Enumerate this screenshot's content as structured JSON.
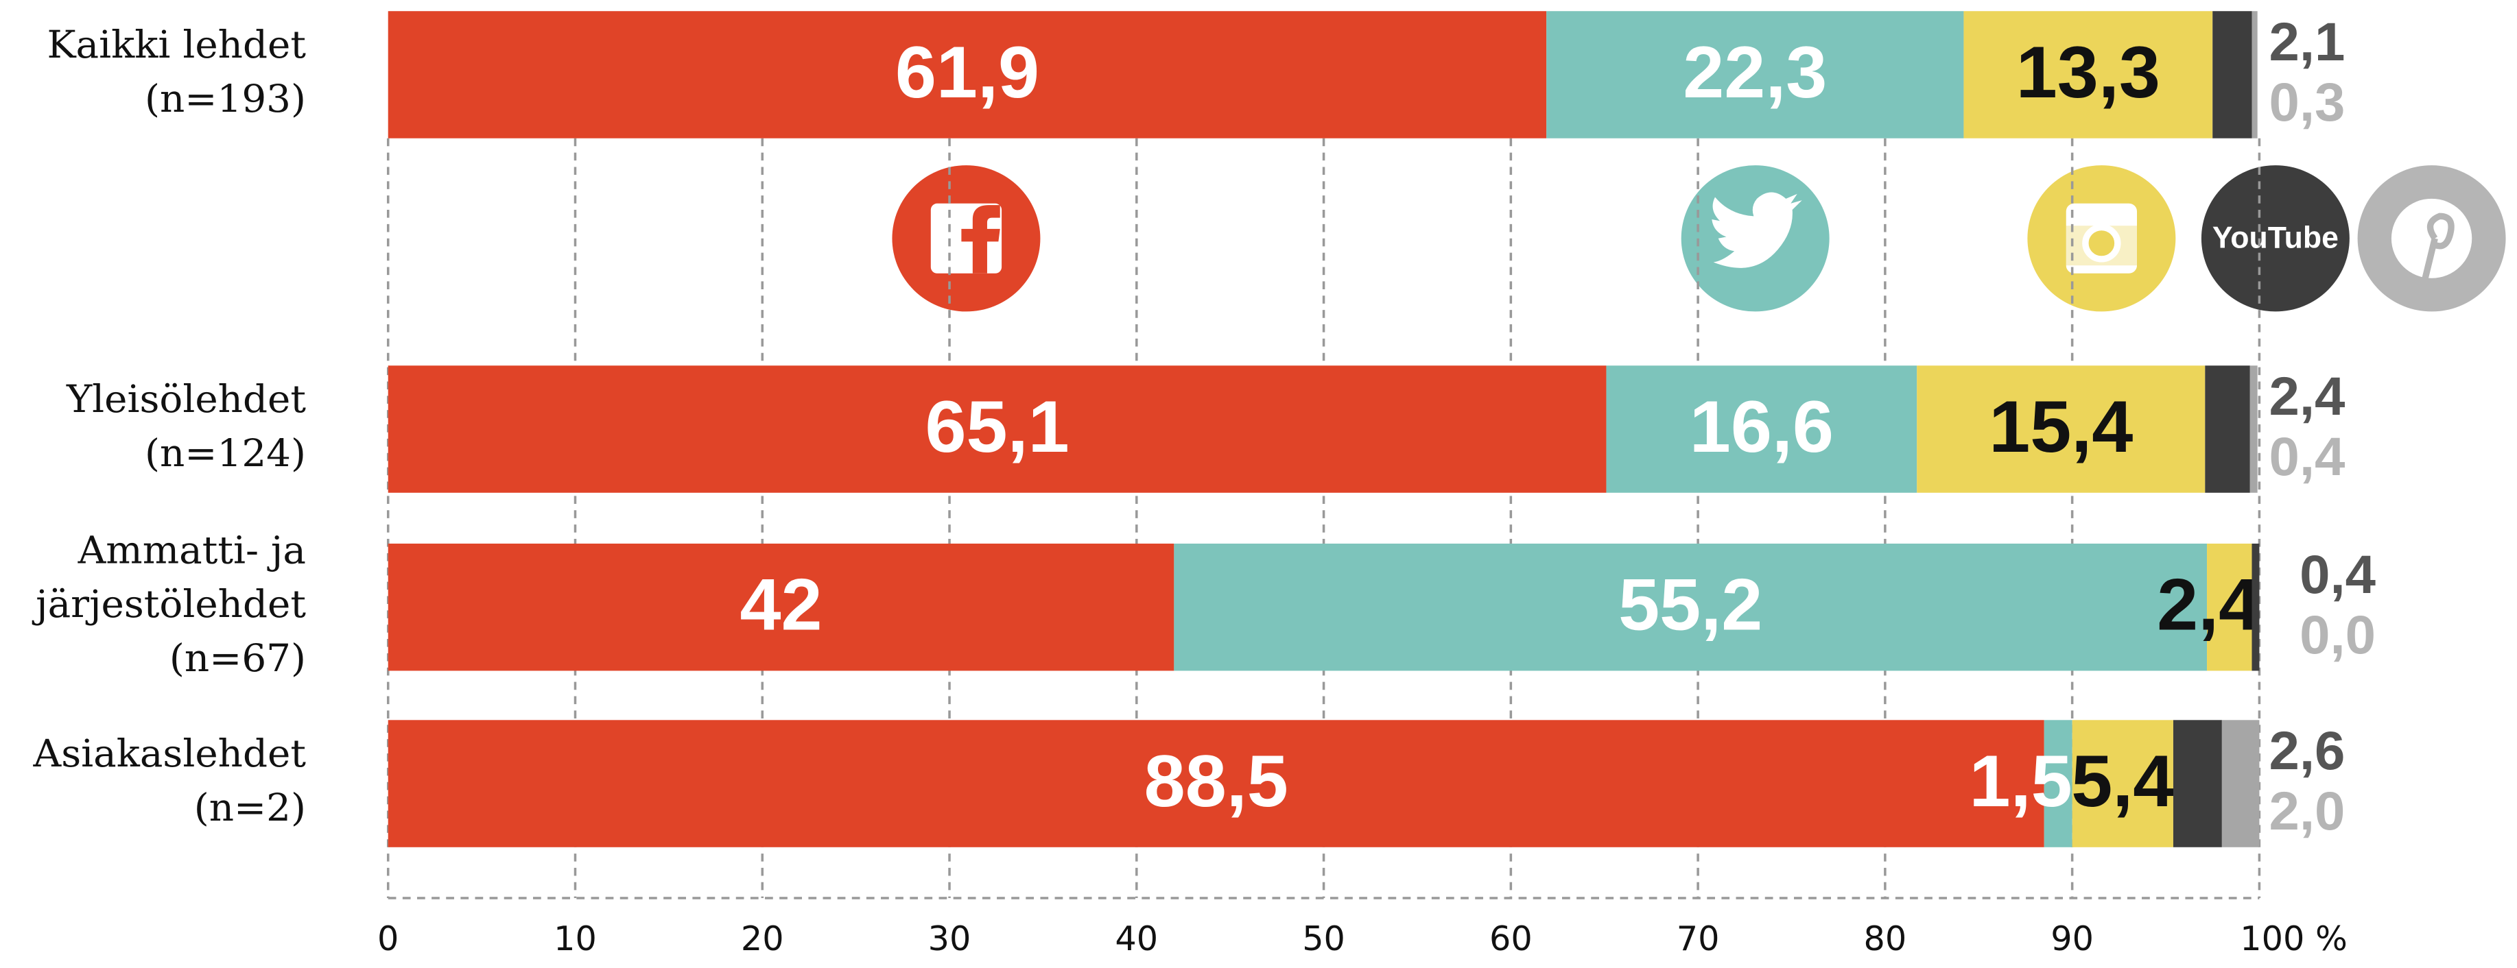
{
  "chart_data": {
    "type": "stacked-bar-horizontal",
    "categories": [
      [
        "Kaikki lehdet",
        "(n=193)"
      ],
      [
        "Yleisölehdet",
        "(n=124)"
      ],
      [
        "Ammatti- ja",
        "järjestölehdet",
        "(n=67)"
      ],
      [
        "Asiakaslehdet",
        "(n=2)"
      ]
    ],
    "series": [
      {
        "color": "#e04428",
        "values": [
          61.9,
          65.1,
          42,
          88.5
        ],
        "value_labels": [
          "61,9",
          "65,1",
          "42",
          "88,5"
        ]
      },
      {
        "color": "#7dc4bb",
        "values": [
          22.3,
          16.6,
          55.2,
          1.5
        ],
        "value_labels": [
          "22,3",
          "16,6",
          "55,2",
          "1,5"
        ]
      },
      {
        "color": "#ecd55a",
        "values": [
          13.3,
          15.4,
          2.4,
          5.4
        ],
        "value_labels": [
          "13,3",
          "15,4",
          "2,4",
          "5,4"
        ]
      },
      {
        "color": "#3d3d3d",
        "values": [
          2.1,
          2.4,
          0.4,
          2.6
        ],
        "value_labels": [
          "2,1",
          "2,4",
          "0,4",
          "2,6"
        ]
      },
      {
        "color": "#a6a6a6",
        "values": [
          0.3,
          0.4,
          0.0,
          2.0
        ],
        "value_labels": [
          "0,3",
          "0,4",
          "0,0",
          "2,0"
        ]
      }
    ],
    "xlim": [
      0,
      100
    ],
    "xticks": [
      0,
      10,
      20,
      30,
      40,
      50,
      60,
      70,
      80,
      90,
      {
        "value": 100,
        "label": "100 %"
      }
    ],
    "grid": true,
    "youtube_icon_text": "YouTube"
  }
}
